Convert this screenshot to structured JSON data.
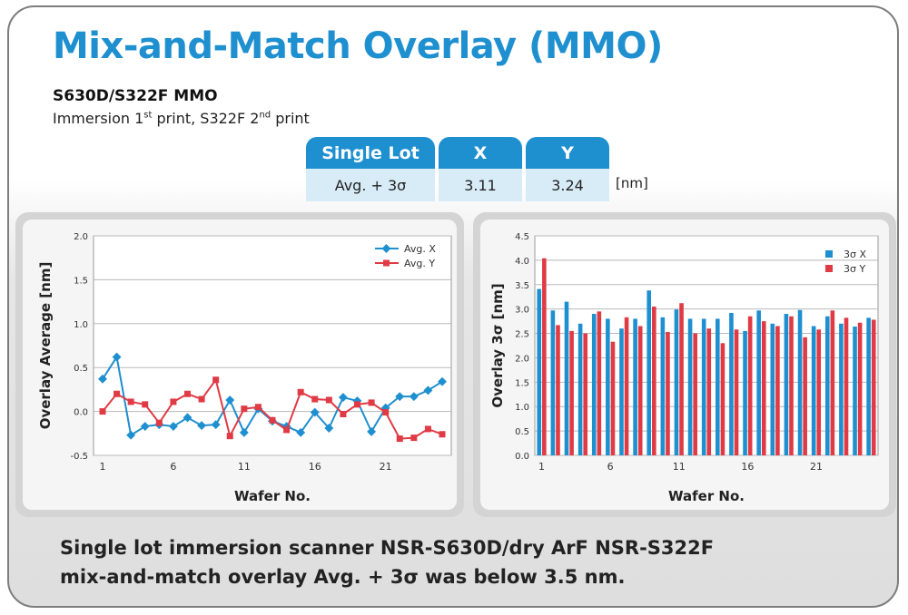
{
  "header": {
    "title": "Mix-and-Match Overlay (MMO)",
    "subtitle": "S630D/S322F MMO",
    "line_part1": "Immersion 1",
    "line_sup1": "st",
    "line_part2": " print, S322F 2",
    "line_sup2": "nd",
    "line_part3": " print"
  },
  "lot_table": {
    "headers": [
      "Single Lot",
      "X",
      "Y"
    ],
    "row": [
      "Avg. + 3σ",
      "3.11",
      "3.24"
    ],
    "unit": "[nm]"
  },
  "footer": {
    "line1": "Single lot immersion scanner NSR-S630D/dry ArF NSR-S322F",
    "line2": "mix-and-match overlay Avg. + 3σ was below 3.5 nm."
  },
  "colors": {
    "x_series": "#1e8fcf",
    "y_series": "#e03a44",
    "accent": "#1e8fcf"
  },
  "chart_data": [
    {
      "type": "line",
      "xlabel": "Wafer No.",
      "ylabel": "Overlay Average [nm]",
      "ylim": [
        -0.5,
        2.0
      ],
      "yticks": [
        "2.0",
        "1.5",
        "1.0",
        "0.5",
        "0.0",
        "-0.5"
      ],
      "xticks": [
        "1",
        "6",
        "11",
        "16",
        "21"
      ],
      "x": [
        1,
        2,
        3,
        4,
        5,
        6,
        7,
        8,
        9,
        10,
        11,
        12,
        13,
        14,
        15,
        16,
        17,
        18,
        19,
        20,
        21,
        22,
        23,
        24,
        25
      ],
      "legend_position": "top-right",
      "grid": true,
      "series": [
        {
          "name": "Avg. X",
          "values": [
            0.37,
            0.62,
            -0.27,
            -0.17,
            -0.15,
            -0.17,
            -0.07,
            -0.16,
            -0.15,
            0.13,
            -0.24,
            0.03,
            -0.11,
            -0.17,
            -0.24,
            -0.01,
            -0.19,
            0.16,
            0.12,
            -0.23,
            0.04,
            0.17,
            0.17,
            0.24,
            0.34
          ]
        },
        {
          "name": "Avg. Y",
          "values": [
            0.0,
            0.2,
            0.11,
            0.08,
            -0.13,
            0.11,
            0.2,
            0.14,
            0.36,
            -0.28,
            0.03,
            0.05,
            -0.1,
            -0.21,
            0.22,
            0.14,
            0.13,
            -0.03,
            0.08,
            0.1,
            -0.01,
            -0.31,
            -0.3,
            -0.2,
            -0.26
          ]
        }
      ]
    },
    {
      "type": "bar",
      "xlabel": "Wafer No.",
      "ylabel": "Overlay 3σ [nm]",
      "ylim": [
        0,
        4.5
      ],
      "yticks": [
        "4.5",
        "4.0",
        "3.5",
        "3.0",
        "2.5",
        "2.0",
        "1.5",
        "1.0",
        "0.5",
        "0.0"
      ],
      "xticks": [
        "1",
        "6",
        "11",
        "16",
        "21"
      ],
      "x": [
        1,
        2,
        3,
        4,
        5,
        6,
        7,
        8,
        9,
        10,
        11,
        12,
        13,
        14,
        15,
        16,
        17,
        18,
        19,
        20,
        21,
        22,
        23,
        24,
        25
      ],
      "legend_position": "top-right",
      "grid": true,
      "series": [
        {
          "name": "3σ X",
          "values": [
            3.41,
            2.97,
            3.15,
            2.7,
            2.9,
            2.8,
            2.6,
            2.8,
            3.38,
            2.83,
            2.99,
            2.8,
            2.8,
            2.8,
            2.92,
            2.55,
            2.97,
            2.7,
            2.9,
            2.98,
            2.65,
            2.85,
            2.7,
            2.64,
            2.82
          ]
        },
        {
          "name": "3σ Y",
          "values": [
            4.04,
            2.67,
            2.55,
            2.5,
            2.95,
            2.33,
            2.83,
            2.65,
            3.05,
            2.53,
            3.12,
            2.5,
            2.6,
            2.3,
            2.58,
            2.85,
            2.75,
            2.65,
            2.85,
            2.42,
            2.58,
            2.97,
            2.82,
            2.72,
            2.78
          ]
        }
      ]
    }
  ]
}
